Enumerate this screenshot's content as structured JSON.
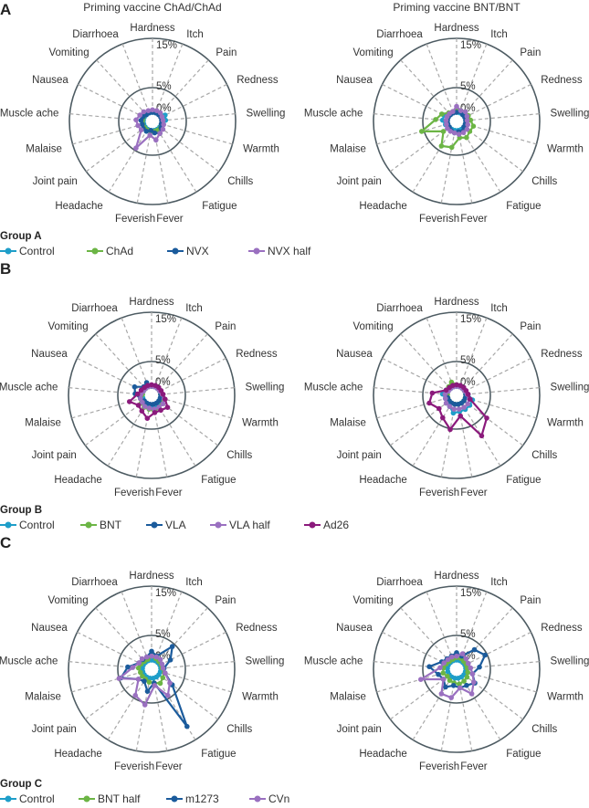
{
  "panels": [
    {
      "letter": "A",
      "group_label": "Group A"
    },
    {
      "letter": "B",
      "group_label": "Group B"
    },
    {
      "letter": "C",
      "group_label": "Group C"
    }
  ],
  "legends": [
    [
      {
        "name": "Control",
        "color": "#1e9ec9"
      },
      {
        "name": "ChAd",
        "color": "#6cb545"
      },
      {
        "name": "NVX",
        "color": "#1b5b9c"
      },
      {
        "name": "NVX half",
        "color": "#9a70c0"
      }
    ],
    [
      {
        "name": "Control",
        "color": "#1e9ec9"
      },
      {
        "name": "BNT",
        "color": "#6cb545"
      },
      {
        "name": "VLA",
        "color": "#1b5b9c"
      },
      {
        "name": "VLA half",
        "color": "#9a70c0"
      },
      {
        "name": "Ad26",
        "color": "#8b1a7c"
      }
    ],
    [
      {
        "name": "Control",
        "color": "#1e9ec9"
      },
      {
        "name": "BNT half",
        "color": "#6cb545"
      },
      {
        "name": "m1273",
        "color": "#1b5b9c"
      },
      {
        "name": "CVn",
        "color": "#9a70c0"
      }
    ]
  ],
  "chart_data": [
    {
      "type": "radar",
      "title": "Priming vaccine ChAd/ChAd",
      "group": "Group A",
      "categories": [
        "Hardness",
        "Itch",
        "Pain",
        "Redness",
        "Swelling",
        "Warmth",
        "Chills",
        "Fatigue",
        "Fever",
        "Feverish",
        "Headache",
        "Joint pain",
        "Malaise",
        "Muscle ache",
        "Nausea",
        "Vomiting",
        "Diarrhoea"
      ],
      "rticks": [
        "0%",
        "5%",
        "15%"
      ],
      "rtick_values": [
        0,
        5,
        15
      ],
      "grid": true,
      "series": [
        {
          "name": "Control",
          "color": "#1e9ec9",
          "values": [
            0,
            0,
            0.3,
            1,
            0.8,
            0.2,
            0,
            0,
            0,
            0,
            0,
            0,
            0,
            0,
            0,
            0,
            0
          ]
        },
        {
          "name": "ChAd",
          "color": "#6cb545",
          "values": [
            0.2,
            0.2,
            0.2,
            0.2,
            0.2,
            0.2,
            0.2,
            0.2,
            0.2,
            0.2,
            0.2,
            0.2,
            0.2,
            0.2,
            0.2,
            0.2,
            0.2
          ]
        },
        {
          "name": "NVX",
          "color": "#1b5b9c",
          "values": [
            0,
            0,
            0,
            0,
            0,
            0,
            0.3,
            1,
            0.5,
            0,
            0.5,
            0.5,
            0.3,
            0.5,
            0.3,
            0,
            0
          ]
        },
        {
          "name": "NVX half",
          "color": "#9a70c0",
          "values": [
            0.5,
            0.5,
            0.5,
            0.3,
            0.3,
            0.5,
            0.8,
            1,
            2,
            1,
            4.5,
            1,
            1.2,
            1.5,
            1,
            0.8,
            0.5
          ]
        }
      ]
    },
    {
      "type": "radar",
      "title": "Priming vaccine BNT/BNT",
      "group": "Group A",
      "categories": [
        "Hardness",
        "Itch",
        "Pain",
        "Redness",
        "Swelling",
        "Warmth",
        "Chills",
        "Fatigue",
        "Fever",
        "Feverish",
        "Headache",
        "Joint pain",
        "Malaise",
        "Muscle ache",
        "Nausea",
        "Vomiting",
        "Diarrhoea"
      ],
      "rticks": [
        "0%",
        "5%",
        "15%"
      ],
      "rtick_values": [
        0,
        5,
        15
      ],
      "grid": true,
      "series": [
        {
          "name": "Control",
          "color": "#1e9ec9",
          "values": [
            0,
            0,
            0,
            0,
            0,
            0,
            0,
            0,
            0,
            0,
            0,
            0,
            0.5,
            1,
            1,
            0,
            0
          ]
        },
        {
          "name": "ChAd",
          "color": "#6cb545",
          "values": [
            0.3,
            0.5,
            0.8,
            0.8,
            1,
            1.7,
            1.5,
            2,
            1.5,
            3.5,
            4,
            1.5,
            5.5,
            2.4,
            1.5,
            0.5,
            0.3
          ]
        },
        {
          "name": "NVX",
          "color": "#1b5b9c",
          "values": [
            0,
            0.3,
            0,
            0,
            0,
            0,
            0,
            0.5,
            0.3,
            0.5,
            0.3,
            0,
            0,
            0,
            0,
            0,
            0
          ]
        },
        {
          "name": "NVX half",
          "color": "#9a70c0",
          "values": [
            1.2,
            0.5,
            0.8,
            0.5,
            0.3,
            0.5,
            0.8,
            0.8,
            0.8,
            0.5,
            0.5,
            0.5,
            0.3,
            0.3,
            0.3,
            0.3,
            0.3
          ]
        }
      ]
    },
    {
      "type": "radar",
      "title": "",
      "group": "Group B",
      "categories": [
        "Hardness",
        "Itch",
        "Pain",
        "Redness",
        "Swelling",
        "Warmth",
        "Chills",
        "Fatigue",
        "Fever",
        "Feverish",
        "Headache",
        "Joint pain",
        "Malaise",
        "Muscle ache",
        "Nausea",
        "Vomiting",
        "Diarrhoea"
      ],
      "rticks": [
        "0%",
        "5%",
        "15%"
      ],
      "rtick_values": [
        0,
        5,
        15
      ],
      "grid": true,
      "series": [
        {
          "name": "Control",
          "color": "#1e9ec9",
          "values": [
            0,
            0,
            0,
            0,
            0,
            0,
            0,
            0.5,
            0.5,
            0.5,
            0,
            0,
            0,
            0,
            0,
            0,
            0
          ]
        },
        {
          "name": "BNT",
          "color": "#6cb545",
          "values": [
            0,
            0,
            0,
            0,
            0,
            0.5,
            0.8,
            1,
            1.5,
            1,
            1,
            0.8,
            0.5,
            0,
            0,
            0,
            0
          ]
        },
        {
          "name": "VLA",
          "color": "#1b5b9c",
          "values": [
            0,
            0,
            0,
            0,
            0,
            0,
            0,
            0,
            0,
            0,
            0,
            0,
            0.5,
            1.5,
            2,
            0.5,
            0.9
          ]
        },
        {
          "name": "VLA half",
          "color": "#9a70c0",
          "values": [
            0,
            0,
            0,
            0,
            0.3,
            0.8,
            1,
            1,
            1,
            0.8,
            0.8,
            0.5,
            0.5,
            0.3,
            0,
            0,
            0
          ]
        },
        {
          "name": "Ad26",
          "color": "#8b1a7c",
          "values": [
            0.3,
            0.3,
            0.3,
            0.3,
            0.5,
            1,
            2.2,
            1.7,
            1.7,
            2.9,
            1.9,
            1.5,
            2.8,
            1,
            0.5,
            0.3,
            0.3
          ]
        }
      ]
    },
    {
      "type": "radar",
      "title": "",
      "group": "Group B",
      "categories": [
        "Hardness",
        "Itch",
        "Pain",
        "Redness",
        "Swelling",
        "Warmth",
        "Chills",
        "Fatigue",
        "Fever",
        "Feverish",
        "Headache",
        "Joint pain",
        "Malaise",
        "Muscle ache",
        "Nausea",
        "Vomiting",
        "Diarrhoea"
      ],
      "rticks": [
        "0%",
        "5%",
        "15%"
      ],
      "rtick_values": [
        0,
        5,
        15
      ],
      "grid": true,
      "series": [
        {
          "name": "Control",
          "color": "#1e9ec9",
          "values": [
            0,
            0,
            0,
            0,
            0.5,
            1.5,
            1.5,
            1.5,
            1.5,
            1.8,
            0.8,
            0.5,
            0.5,
            1,
            0.5,
            0,
            0
          ]
        },
        {
          "name": "BNT",
          "color": "#6cb545",
          "values": [
            0.3,
            0,
            0,
            0,
            0,
            0,
            0,
            0,
            0,
            0,
            0,
            0,
            0,
            0,
            0.5,
            0.5,
            1
          ]
        },
        {
          "name": "VLA",
          "color": "#1b5b9c",
          "values": [
            0,
            0,
            0,
            0,
            0,
            0,
            0,
            0,
            0,
            0,
            0,
            0,
            0,
            0.5,
            0.5,
            0,
            0
          ]
        },
        {
          "name": "VLA half",
          "color": "#9a70c0",
          "values": [
            0,
            0,
            0,
            0,
            0.3,
            0.8,
            1,
            1,
            1,
            1,
            0.8,
            0.8,
            0.5,
            0.5,
            0,
            0,
            0
          ]
        },
        {
          "name": "Ad26",
          "color": "#8b1a7c",
          "values": [
            0.3,
            0.3,
            0.3,
            0.3,
            0.5,
            1,
            5.8,
            7.8,
            2.4,
            5.2,
            3.5,
            2.6,
            3.9,
            3.1,
            0.5,
            0.3,
            0.3
          ]
        }
      ]
    },
    {
      "type": "radar",
      "title": "",
      "group": "Group C",
      "categories": [
        "Hardness",
        "Itch",
        "Pain",
        "Redness",
        "Swelling",
        "Warmth",
        "Chills",
        "Fatigue",
        "Fever",
        "Feverish",
        "Headache",
        "Joint pain",
        "Malaise",
        "Muscle ache",
        "Nausea",
        "Vomiting",
        "Diarrhoea"
      ],
      "rticks": [
        "0%",
        "5%",
        "15%"
      ],
      "rtick_values": [
        0,
        5,
        15
      ],
      "grid": true,
      "series": [
        {
          "name": "Control",
          "color": "#1e9ec9",
          "values": [
            0,
            0,
            0,
            0,
            0,
            0,
            0,
            0,
            0,
            0,
            0,
            0,
            0,
            0,
            0,
            0,
            0
          ]
        },
        {
          "name": "BNT half",
          "color": "#6cb545",
          "values": [
            0.8,
            0.5,
            0.3,
            0.3,
            0.3,
            0.8,
            1,
            1.5,
            1,
            0.8,
            0.5,
            0.5,
            0.5,
            0.8,
            0.5,
            0.3,
            0.3
          ]
        },
        {
          "name": "m1273",
          "color": "#1b5b9c",
          "values": [
            1.8,
            1,
            4.4,
            2.4,
            0.7,
            1,
            3.4,
            11.8,
            1,
            2.7,
            1,
            1.5,
            4.6,
            3,
            1,
            0.8,
            0.8
          ]
        },
        {
          "name": "CVn",
          "color": "#9a70c0",
          "values": [
            0.8,
            0.8,
            0.8,
            0.5,
            0.5,
            1,
            2.8,
            4.4,
            1.5,
            5.5,
            4.4,
            1.5,
            5,
            2,
            1,
            1,
            0.8
          ]
        }
      ]
    },
    {
      "type": "radar",
      "title": "",
      "group": "Group C",
      "categories": [
        "Hardness",
        "Itch",
        "Pain",
        "Redness",
        "Swelling",
        "Warmth",
        "Chills",
        "Fatigue",
        "Fever",
        "Feverish",
        "Headache",
        "Joint pain",
        "Malaise",
        "Muscle ache",
        "Nausea",
        "Vomiting",
        "Diarrhoea"
      ],
      "rticks": [
        "0%",
        "5%",
        "15%"
      ],
      "rtick_values": [
        0,
        5,
        15
      ],
      "grid": true,
      "series": [
        {
          "name": "Control",
          "color": "#1e9ec9",
          "values": [
            0,
            0,
            0,
            0,
            0,
            0,
            0,
            0,
            0,
            0,
            0,
            0,
            0,
            0,
            0,
            0,
            0
          ]
        },
        {
          "name": "BNT half",
          "color": "#6cb545",
          "values": [
            0.5,
            0.5,
            0.3,
            0.3,
            0.3,
            0.5,
            0.8,
            1,
            1.2,
            1,
            0.8,
            0.5,
            1,
            0.8,
            0.5,
            0.3,
            0.3
          ]
        },
        {
          "name": "m1273",
          "color": "#1b5b9c",
          "values": [
            1.5,
            1,
            3.5,
            4.6,
            2.8,
            1.5,
            2.8,
            2,
            2,
            1.5,
            2.4,
            1.5,
            2,
            3.7,
            1.5,
            1,
            1
          ]
        },
        {
          "name": "CVn",
          "color": "#9a70c0",
          "values": [
            0.8,
            1.5,
            1,
            0.8,
            1,
            1.5,
            2.5,
            4,
            2,
            4,
            4,
            1.5,
            5.7,
            1.5,
            1,
            0.8,
            0.8
          ]
        }
      ]
    }
  ]
}
